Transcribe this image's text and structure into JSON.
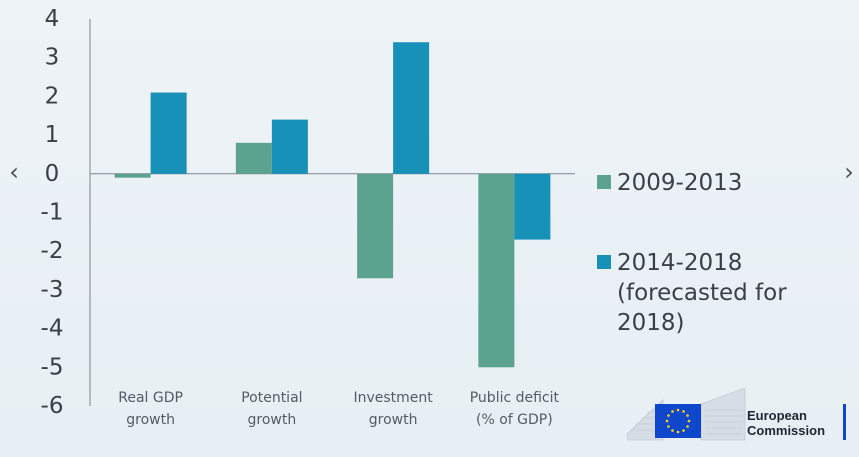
{
  "chart_data": {
    "type": "bar",
    "categories": [
      [
        "Real GDP",
        "growth"
      ],
      [
        "Potential",
        "growth"
      ],
      [
        "Investment",
        "growth"
      ],
      [
        "Public deficit",
        "(% of GDP)"
      ]
    ],
    "series": [
      {
        "name": "2009-2013",
        "color": "#5ba28f",
        "values": [
          -0.1,
          0.8,
          -2.7,
          -5.0
        ]
      },
      {
        "name": "2014-2018",
        "legend_sub": "(forecasted for 2018)",
        "color": "#1791b8",
        "values": [
          2.1,
          1.4,
          3.4,
          -1.7
        ]
      }
    ],
    "ylim": [
      -6,
      4
    ],
    "yticks": [
      4,
      3,
      2,
      1,
      0,
      -1,
      -2,
      -3,
      -4,
      -5,
      -6
    ],
    "legend_position": "right",
    "grid": false
  },
  "nav": {
    "prev_symbol": "‹",
    "next_symbol": "›"
  },
  "logo": {
    "line1": "European",
    "line2": "Commission",
    "flag_color": "#0e47cb",
    "star_color": "#ffd617"
  }
}
